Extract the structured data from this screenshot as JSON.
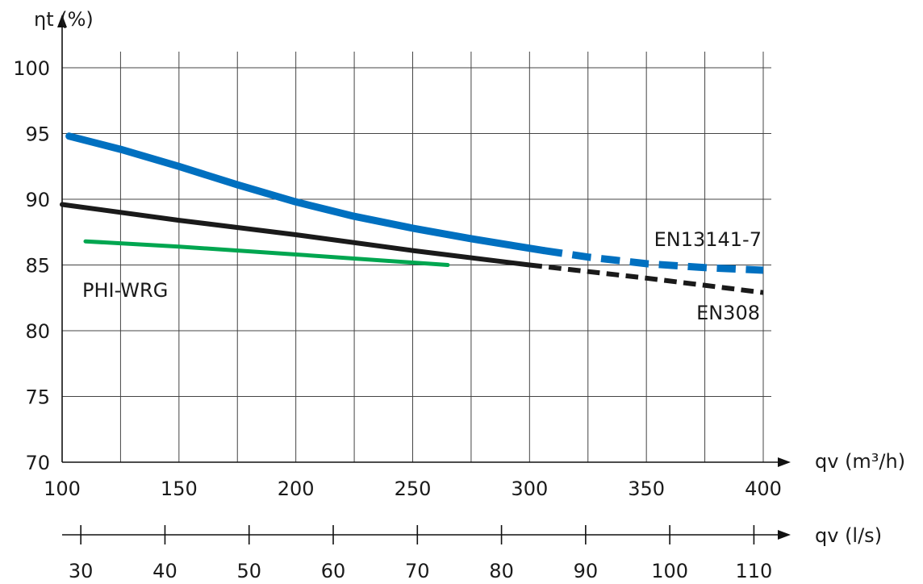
{
  "chart_data": {
    "type": "line",
    "ylabel": "ηt (%)",
    "xlabel": "qv (m³/h)",
    "secondary_xlabel": "qv (l/s)",
    "xlim": [
      100,
      400
    ],
    "ylim": [
      70,
      100
    ],
    "x_ticks": [
      100,
      150,
      200,
      250,
      300,
      350,
      400
    ],
    "y_ticks": [
      70,
      75,
      80,
      85,
      90,
      95,
      100
    ],
    "secondary_x_ticks": [
      30,
      40,
      50,
      60,
      70,
      80,
      90,
      100,
      110
    ],
    "grid": true,
    "series": [
      {
        "name": "EN13141-7",
        "color": "#0070c0",
        "points": [
          [
            103,
            94.8
          ],
          [
            125,
            93.8
          ],
          [
            150,
            92.5
          ],
          [
            175,
            91.1
          ],
          [
            200,
            89.8
          ],
          [
            225,
            88.7
          ],
          [
            250,
            87.8
          ],
          [
            275,
            87.0
          ],
          [
            306,
            86.1
          ]
        ],
        "dashed_points": [
          [
            306,
            86.1
          ],
          [
            325,
            85.6
          ],
          [
            350,
            85.1
          ],
          [
            375,
            84.8
          ],
          [
            400,
            84.6
          ]
        ]
      },
      {
        "name": "EN308",
        "color": "#1a1a1a",
        "points": [
          [
            100,
            89.6
          ],
          [
            150,
            88.4
          ],
          [
            200,
            87.3
          ],
          [
            250,
            86.1
          ],
          [
            300,
            85.0
          ]
        ],
        "dashed_points": [
          [
            300,
            85.0
          ],
          [
            350,
            84.0
          ],
          [
            400,
            82.9
          ]
        ]
      },
      {
        "name": "PHI-WRG",
        "color": "#00a650",
        "points": [
          [
            110,
            86.8
          ],
          [
            150,
            86.4
          ],
          [
            200,
            85.8
          ],
          [
            265,
            85.0
          ]
        ]
      }
    ]
  }
}
